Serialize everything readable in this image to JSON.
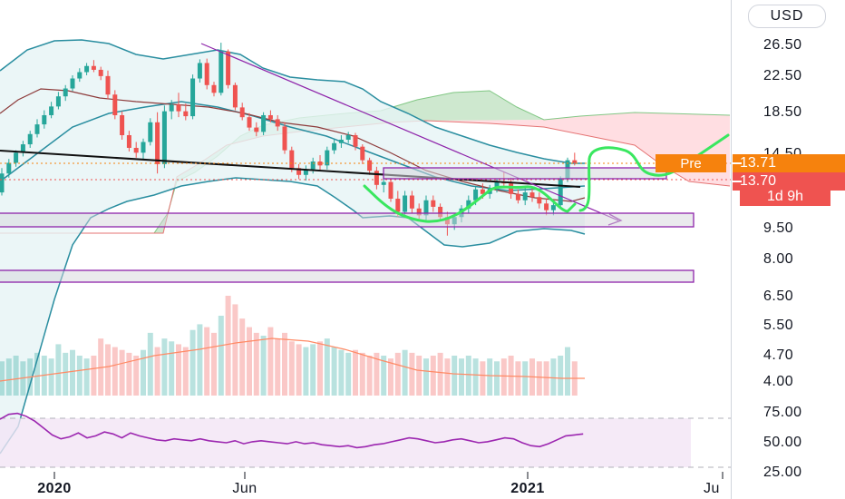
{
  "currency_button": "USD",
  "price_axis_labels": [
    "26.50",
    "22.50",
    "18.50",
    "14.50",
    "9.50",
    "8.00",
    "6.50",
    "5.50",
    "4.70",
    "4.00"
  ],
  "rsi_axis_labels": [
    "75.00",
    "50.00",
    "25.00"
  ],
  "date_axis_labels": [
    {
      "text": "2020",
      "bold": true
    },
    {
      "text": "Jun",
      "bold": false
    },
    {
      "text": "2021",
      "bold": true
    },
    {
      "text": "Ju",
      "bold": false
    }
  ],
  "tags": {
    "pre_label": "Pre",
    "pre_price": "13.71",
    "last_price": "13.70",
    "countdown": "1d 9h"
  },
  "colors": {
    "up": "#26a69a",
    "down": "#ef5350",
    "bollinger": "#2a8ea0",
    "bollinger_fill": "#e6f4f5",
    "ichimoku_bull": "#a5d6a7",
    "ichimoku_bear": "#ffcdd2",
    "annotation_purple": "#8e24aa",
    "drawing_green": "#39e75f",
    "rsi": "#9c27b0",
    "rsi_band": "#f3e5f5",
    "volume_ma": "#ff8a65",
    "ma_dark": "#8d3b3b"
  },
  "chart_data": {
    "type": "candlestick",
    "y_scale": "log",
    "candles": [
      {
        "o": 11.6,
        "h": 13.3,
        "l": 11.4,
        "c": 12.9
      },
      {
        "o": 12.9,
        "h": 14.0,
        "l": 12.6,
        "c": 13.7
      },
      {
        "o": 13.7,
        "h": 14.7,
        "l": 13.4,
        "c": 14.5
      },
      {
        "o": 14.5,
        "h": 15.5,
        "l": 14.2,
        "c": 15.2
      },
      {
        "o": 15.2,
        "h": 16.4,
        "l": 14.9,
        "c": 16.1
      },
      {
        "o": 16.1,
        "h": 17.5,
        "l": 15.8,
        "c": 17.0
      },
      {
        "o": 17.0,
        "h": 18.4,
        "l": 16.6,
        "c": 17.9
      },
      {
        "o": 17.9,
        "h": 19.3,
        "l": 17.6,
        "c": 18.8
      },
      {
        "o": 18.8,
        "h": 20.4,
        "l": 18.5,
        "c": 19.9
      },
      {
        "o": 19.9,
        "h": 21.2,
        "l": 19.4,
        "c": 20.8
      },
      {
        "o": 20.8,
        "h": 22.4,
        "l": 20.5,
        "c": 22.0
      },
      {
        "o": 22.0,
        "h": 23.3,
        "l": 21.6,
        "c": 22.8
      },
      {
        "o": 22.8,
        "h": 24.0,
        "l": 22.4,
        "c": 23.6
      },
      {
        "o": 23.6,
        "h": 24.4,
        "l": 22.8,
        "c": 23.1
      },
      {
        "o": 23.1,
        "h": 23.5,
        "l": 21.8,
        "c": 22.3
      },
      {
        "o": 22.3,
        "h": 23.0,
        "l": 19.6,
        "c": 20.1
      },
      {
        "o": 20.1,
        "h": 20.6,
        "l": 17.5,
        "c": 17.9
      },
      {
        "o": 17.9,
        "h": 18.3,
        "l": 15.6,
        "c": 16.0
      },
      {
        "o": 16.0,
        "h": 16.4,
        "l": 14.6,
        "c": 14.9
      },
      {
        "o": 14.9,
        "h": 15.4,
        "l": 14.1,
        "c": 14.5
      },
      {
        "o": 14.5,
        "h": 15.7,
        "l": 14.0,
        "c": 15.4
      },
      {
        "o": 15.4,
        "h": 17.6,
        "l": 15.1,
        "c": 17.2
      },
      {
        "o": 17.2,
        "h": 18.2,
        "l": 12.9,
        "c": 13.6
      },
      {
        "o": 13.6,
        "h": 18.9,
        "l": 13.3,
        "c": 18.3
      },
      {
        "o": 18.3,
        "h": 19.5,
        "l": 17.5,
        "c": 19.0
      },
      {
        "o": 19.0,
        "h": 20.3,
        "l": 17.7,
        "c": 18.3
      },
      {
        "o": 18.3,
        "h": 19.1,
        "l": 17.4,
        "c": 17.8
      },
      {
        "o": 17.8,
        "h": 22.5,
        "l": 17.5,
        "c": 22.0
      },
      {
        "o": 22.0,
        "h": 24.5,
        "l": 21.5,
        "c": 24.0
      },
      {
        "o": 24.0,
        "h": 24.6,
        "l": 20.7,
        "c": 21.2
      },
      {
        "o": 21.2,
        "h": 21.6,
        "l": 19.9,
        "c": 20.3
      },
      {
        "o": 20.3,
        "h": 26.9,
        "l": 20.0,
        "c": 25.6
      },
      {
        "o": 25.6,
        "h": 25.9,
        "l": 20.8,
        "c": 21.2
      },
      {
        "o": 21.2,
        "h": 21.5,
        "l": 18.4,
        "c": 18.7
      },
      {
        "o": 18.7,
        "h": 19.2,
        "l": 17.4,
        "c": 17.7
      },
      {
        "o": 17.7,
        "h": 18.1,
        "l": 16.4,
        "c": 16.7
      },
      {
        "o": 16.7,
        "h": 17.2,
        "l": 15.9,
        "c": 16.3
      },
      {
        "o": 16.3,
        "h": 18.2,
        "l": 16.0,
        "c": 17.9
      },
      {
        "o": 17.9,
        "h": 18.4,
        "l": 17.2,
        "c": 17.5
      },
      {
        "o": 17.5,
        "h": 17.9,
        "l": 16.4,
        "c": 16.8
      },
      {
        "o": 16.8,
        "h": 17.2,
        "l": 14.4,
        "c": 14.7
      },
      {
        "o": 14.7,
        "h": 15.0,
        "l": 13.0,
        "c": 13.3
      },
      {
        "o": 13.3,
        "h": 13.6,
        "l": 12.5,
        "c": 12.8
      },
      {
        "o": 12.8,
        "h": 13.5,
        "l": 12.4,
        "c": 13.2
      },
      {
        "o": 13.2,
        "h": 14.1,
        "l": 12.9,
        "c": 13.8
      },
      {
        "o": 13.8,
        "h": 14.3,
        "l": 13.1,
        "c": 13.5
      },
      {
        "o": 13.5,
        "h": 15.0,
        "l": 13.2,
        "c": 14.7
      },
      {
        "o": 14.7,
        "h": 15.6,
        "l": 14.4,
        "c": 15.3
      },
      {
        "o": 15.3,
        "h": 16.0,
        "l": 14.9,
        "c": 15.6
      },
      {
        "o": 15.6,
        "h": 16.3,
        "l": 15.3,
        "c": 16.0
      },
      {
        "o": 16.0,
        "h": 16.2,
        "l": 14.7,
        "c": 15.0
      },
      {
        "o": 15.0,
        "h": 15.2,
        "l": 13.6,
        "c": 13.9
      },
      {
        "o": 13.9,
        "h": 14.1,
        "l": 12.8,
        "c": 13.1
      },
      {
        "o": 13.1,
        "h": 13.4,
        "l": 11.8,
        "c": 12.1
      },
      {
        "o": 12.1,
        "h": 12.5,
        "l": 11.6,
        "c": 12.3
      },
      {
        "o": 12.3,
        "h": 12.5,
        "l": 11.0,
        "c": 11.2
      },
      {
        "o": 11.2,
        "h": 11.7,
        "l": 10.1,
        "c": 10.4
      },
      {
        "o": 10.4,
        "h": 11.7,
        "l": 10.2,
        "c": 11.4
      },
      {
        "o": 11.4,
        "h": 11.7,
        "l": 10.3,
        "c": 10.6
      },
      {
        "o": 10.6,
        "h": 10.9,
        "l": 10.0,
        "c": 10.2
      },
      {
        "o": 10.2,
        "h": 11.4,
        "l": 9.9,
        "c": 11.1
      },
      {
        "o": 11.1,
        "h": 11.4,
        "l": 10.4,
        "c": 10.7
      },
      {
        "o": 10.7,
        "h": 10.9,
        "l": 9.9,
        "c": 10.1
      },
      {
        "o": 10.1,
        "h": 10.4,
        "l": 9.1,
        "c": 9.7
      },
      {
        "o": 9.7,
        "h": 10.3,
        "l": 9.4,
        "c": 10.1
      },
      {
        "o": 10.1,
        "h": 10.8,
        "l": 9.8,
        "c": 10.6
      },
      {
        "o": 10.6,
        "h": 11.4,
        "l": 10.3,
        "c": 11.1
      },
      {
        "o": 11.1,
        "h": 12.0,
        "l": 10.8,
        "c": 11.8
      },
      {
        "o": 11.8,
        "h": 12.2,
        "l": 11.2,
        "c": 11.5
      },
      {
        "o": 11.5,
        "h": 12.1,
        "l": 11.2,
        "c": 11.9
      },
      {
        "o": 11.9,
        "h": 12.5,
        "l": 11.6,
        "c": 12.3
      },
      {
        "o": 12.3,
        "h": 13.0,
        "l": 11.9,
        "c": 12.2
      },
      {
        "o": 12.2,
        "h": 12.6,
        "l": 11.2,
        "c": 11.5
      },
      {
        "o": 11.5,
        "h": 11.8,
        "l": 10.9,
        "c": 11.1
      },
      {
        "o": 11.1,
        "h": 11.9,
        "l": 10.8,
        "c": 11.6
      },
      {
        "o": 11.6,
        "h": 12.0,
        "l": 11.0,
        "c": 11.3
      },
      {
        "o": 11.3,
        "h": 11.6,
        "l": 10.6,
        "c": 10.9
      },
      {
        "o": 10.9,
        "h": 11.2,
        "l": 10.2,
        "c": 10.5
      },
      {
        "o": 10.5,
        "h": 11.0,
        "l": 10.2,
        "c": 10.8
      },
      {
        "o": 10.8,
        "h": 12.7,
        "l": 10.6,
        "c": 12.5
      },
      {
        "o": 12.5,
        "h": 14.1,
        "l": 12.3,
        "c": 13.9
      },
      {
        "o": 13.9,
        "h": 14.5,
        "l": 13.5,
        "c": 13.7
      }
    ],
    "volume": [
      12,
      13,
      14,
      12,
      13,
      15,
      14,
      13,
      18,
      15,
      16,
      14,
      13,
      14,
      20,
      18,
      17,
      16,
      15,
      14,
      16,
      22,
      17,
      20,
      19,
      18,
      17,
      23,
      25,
      24,
      22,
      28,
      35,
      32,
      27,
      24,
      22,
      21,
      24,
      20,
      22,
      19,
      18,
      17,
      18,
      19,
      20,
      17,
      16,
      15,
      16,
      15,
      14,
      15,
      14,
      13,
      15,
      16,
      15,
      14,
      13,
      14,
      15,
      13,
      14,
      13,
      14,
      13,
      12,
      13,
      12,
      13,
      14,
      12,
      12,
      13,
      12,
      12,
      13,
      14,
      17,
      12
    ],
    "rsi": [
      74,
      79,
      80,
      77,
      72,
      65,
      58,
      54,
      56,
      60,
      55,
      57,
      61,
      59,
      55,
      60,
      57,
      55,
      53,
      52,
      54,
      53,
      52,
      54,
      52,
      51,
      50,
      52,
      49,
      51,
      52,
      51,
      50,
      49,
      51,
      49,
      50,
      48,
      47,
      46,
      47,
      45,
      46,
      48,
      49,
      51,
      53,
      55,
      54,
      52,
      50,
      51,
      53,
      54,
      52,
      50,
      51,
      53,
      55,
      54,
      50,
      47,
      46,
      49,
      53,
      57,
      58,
      59
    ],
    "ylim": [
      3.7,
      32
    ]
  }
}
